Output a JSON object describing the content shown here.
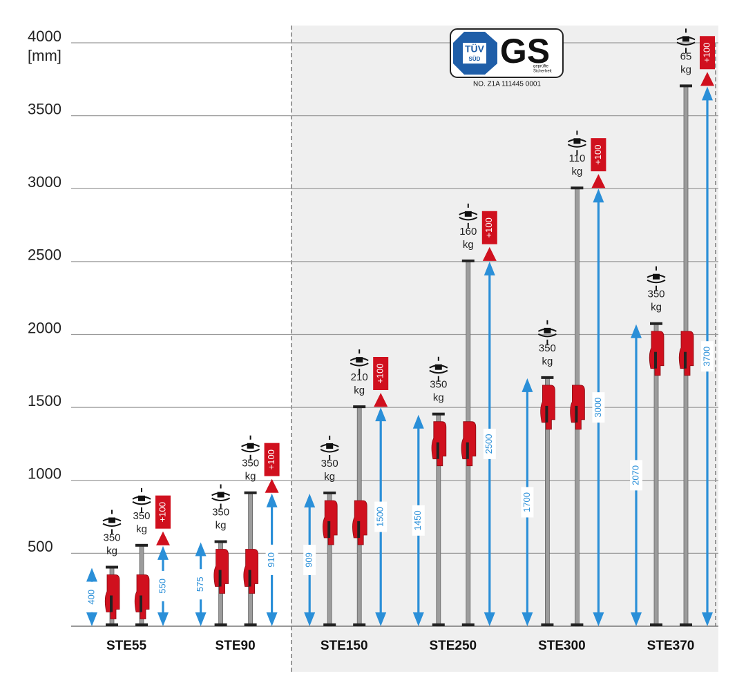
{
  "chart_data": {
    "type": "range",
    "y_unit": "[mm]",
    "ylim": [
      0,
      4000
    ],
    "yticks": [
      500,
      1000,
      1500,
      2000,
      2500,
      3000,
      3500,
      4000
    ],
    "grid": true,
    "load_unit": "kg",
    "arrow_color": "#2a8fd8",
    "extension_color": "#d0101e",
    "handle_color": "#d0101e",
    "certificate": {
      "tuv": "TÜV",
      "sud": "SÜD",
      "gs": "GS",
      "gs_caption": [
        "geprüfte",
        "Sicherheit"
      ],
      "number": "NO. Z1A 111445 0001"
    },
    "products": [
      {
        "name": "STE55",
        "min": 400,
        "max": 550,
        "load_min": 350,
        "load_max": 350,
        "extension": {
          "value": 100,
          "label": "+100"
        }
      },
      {
        "name": "STE90",
        "min": 575,
        "max": 910,
        "load_min": 350,
        "load_max": 350,
        "extension": {
          "value": 100,
          "label": "+100"
        }
      },
      {
        "name": "STE150",
        "min": 909,
        "max": 1500,
        "load_min": 350,
        "load_max": 210,
        "extension": {
          "value": 100,
          "label": "+100"
        }
      },
      {
        "name": "STE250",
        "min": 1450,
        "max": 2500,
        "load_min": 350,
        "load_max": 160,
        "extension": {
          "value": 100,
          "label": "+100"
        }
      },
      {
        "name": "STE300",
        "min": 1700,
        "max": 3000,
        "load_min": 350,
        "load_max": 110,
        "extension": {
          "value": 100,
          "label": "+100"
        }
      },
      {
        "name": "STE370",
        "min": 2070,
        "max": 3700,
        "load_min": 350,
        "load_max": 65,
        "extension": {
          "value": 100,
          "label": "+100"
        }
      }
    ]
  }
}
